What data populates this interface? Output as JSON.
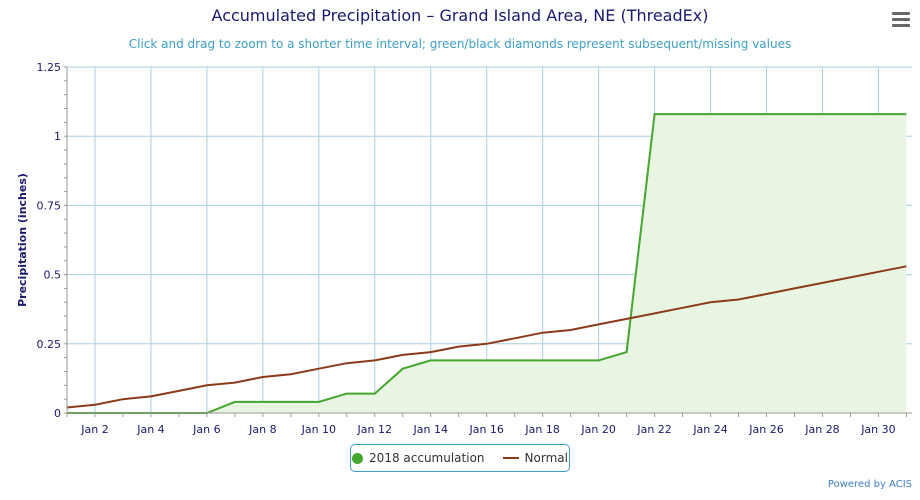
{
  "title": "Accumulated Precipitation – Grand Island Area, NE (ThreadEx)",
  "subtitle": "Click and drag to zoom to a shorter time interval; green/black diamonds represent subsequent/missing values",
  "menu_icon": "hamburger-menu-icon",
  "credits": "Powered by ACIS",
  "colors": {
    "accumulation": "#44a52f",
    "accumulation_fill": "#e9f5e3",
    "normal": "#8b3a1a",
    "grid": "#a7cfe0",
    "axis_text": "#1a1a6e"
  },
  "legend": {
    "accumulation_label": "2018 accumulation",
    "normal_label": "Normal"
  },
  "chart_data": {
    "type": "line",
    "title": "Accumulated Precipitation – Grand Island Area, NE (ThreadEx)",
    "xlabel": "",
    "ylabel": "Precipitation (inches)",
    "ylim": [
      0,
      1.25
    ],
    "yticks": [
      0,
      0.25,
      0.5,
      0.75,
      1,
      1.25
    ],
    "ytick_labels": [
      "0",
      "0.25",
      "0.5",
      "0.75",
      "1",
      "1.25"
    ],
    "xlim": [
      1,
      31.2
    ],
    "xticks": [
      2,
      4,
      6,
      8,
      10,
      12,
      14,
      16,
      18,
      20,
      22,
      24,
      26,
      28,
      30
    ],
    "xtick_labels": [
      "Jan 2",
      "Jan 4",
      "Jan 6",
      "Jan 8",
      "Jan 10",
      "Jan 12",
      "Jan 14",
      "Jan 16",
      "Jan 18",
      "Jan 20",
      "Jan 22",
      "Jan 24",
      "Jan 26",
      "Jan 28",
      "Jan 30"
    ],
    "grid": true,
    "legend_position": "bottom-center",
    "x": [
      1,
      2,
      3,
      4,
      5,
      6,
      7,
      8,
      9,
      10,
      11,
      12,
      13,
      14,
      15,
      16,
      17,
      18,
      19,
      20,
      21,
      22,
      23,
      24,
      25,
      26,
      27,
      28,
      29,
      30,
      31
    ],
    "series": [
      {
        "name": "2018 accumulation",
        "values": [
          0,
          0,
          0,
          0,
          0,
          0,
          0.04,
          0.04,
          0.04,
          0.04,
          0.07,
          0.07,
          0.16,
          0.19,
          0.19,
          0.19,
          0.19,
          0.19,
          0.19,
          0.19,
          0.22,
          1.08,
          1.08,
          1.08,
          1.08,
          1.08,
          1.08,
          1.08,
          1.08,
          1.08,
          1.08
        ]
      },
      {
        "name": "Normal",
        "values": [
          0.02,
          0.03,
          0.05,
          0.06,
          0.08,
          0.1,
          0.11,
          0.13,
          0.14,
          0.16,
          0.18,
          0.19,
          0.21,
          0.22,
          0.24,
          0.25,
          0.27,
          0.29,
          0.3,
          0.32,
          0.34,
          0.36,
          0.38,
          0.4,
          0.41,
          0.43,
          0.45,
          0.47,
          0.49,
          0.51,
          0.53
        ]
      }
    ]
  }
}
